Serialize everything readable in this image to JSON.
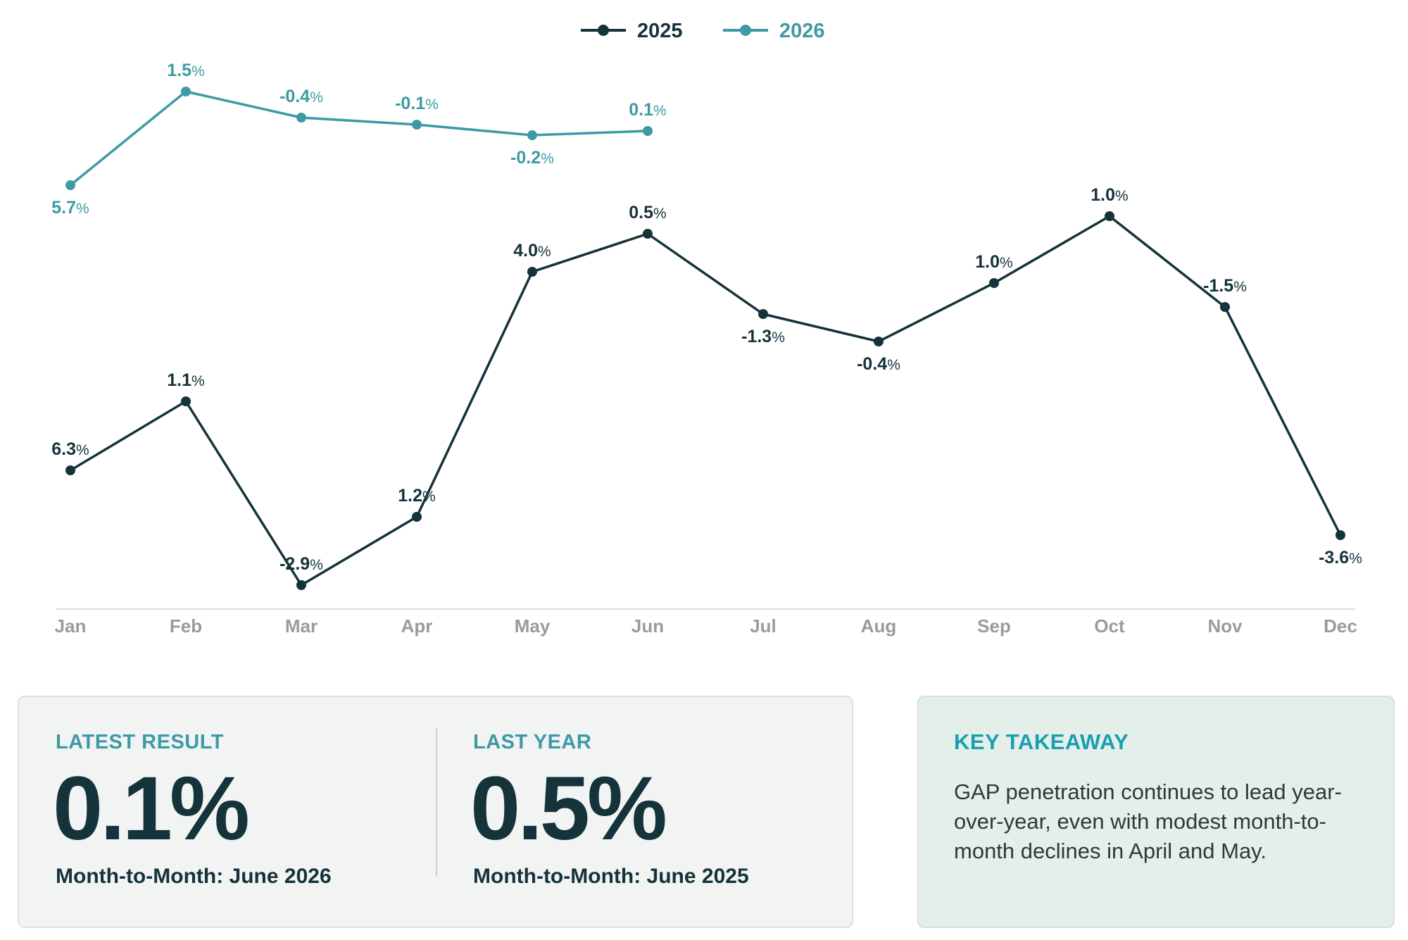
{
  "chart_data": {
    "type": "line",
    "categories": [
      "Jan",
      "Feb",
      "Mar",
      "Apr",
      "May",
      "Jun",
      "Jul",
      "Aug",
      "Sep",
      "Oct",
      "Nov",
      "Dec"
    ],
    "grid": false,
    "legend": "top-center",
    "series": [
      {
        "name": "2025",
        "color": "#15333a",
        "labels": [
          "6.3",
          "1.1",
          "-2.9",
          "1.2",
          "4.0",
          "0.5",
          "-1.3",
          "-0.4",
          "1.0",
          "1.0",
          "-1.5",
          "-3.6"
        ],
        "label_positions": [
          "above",
          "above",
          "above",
          "above",
          "above",
          "above",
          "below",
          "below",
          "above",
          "above",
          "above",
          "below"
        ]
      },
      {
        "name": "2026",
        "color": "#3e9aa5",
        "labels": [
          "5.7",
          "1.5",
          "-0.4",
          "-0.1",
          "-0.2",
          "0.1"
        ],
        "label_positions": [
          "below",
          "above",
          "above",
          "above",
          "below",
          "above"
        ]
      }
    ],
    "value_suffix": "%"
  },
  "summary": {
    "latest": {
      "eyebrow": "LATEST RESULT",
      "value": "0.1%",
      "label": "Month-to-Month: June 2026"
    },
    "last_year": {
      "eyebrow": "LAST YEAR",
      "value": "0.5%",
      "label": "Month-to-Month: June 2025"
    }
  },
  "takeaway": {
    "title": "KEY TAKEAWAY",
    "text": "GAP penetration continues to lead year-over-year, even with modest month-to-month declines in April and May."
  },
  "colors": {
    "axis_label": "#9b9b9b",
    "axis_line": "#dcdcdc"
  }
}
